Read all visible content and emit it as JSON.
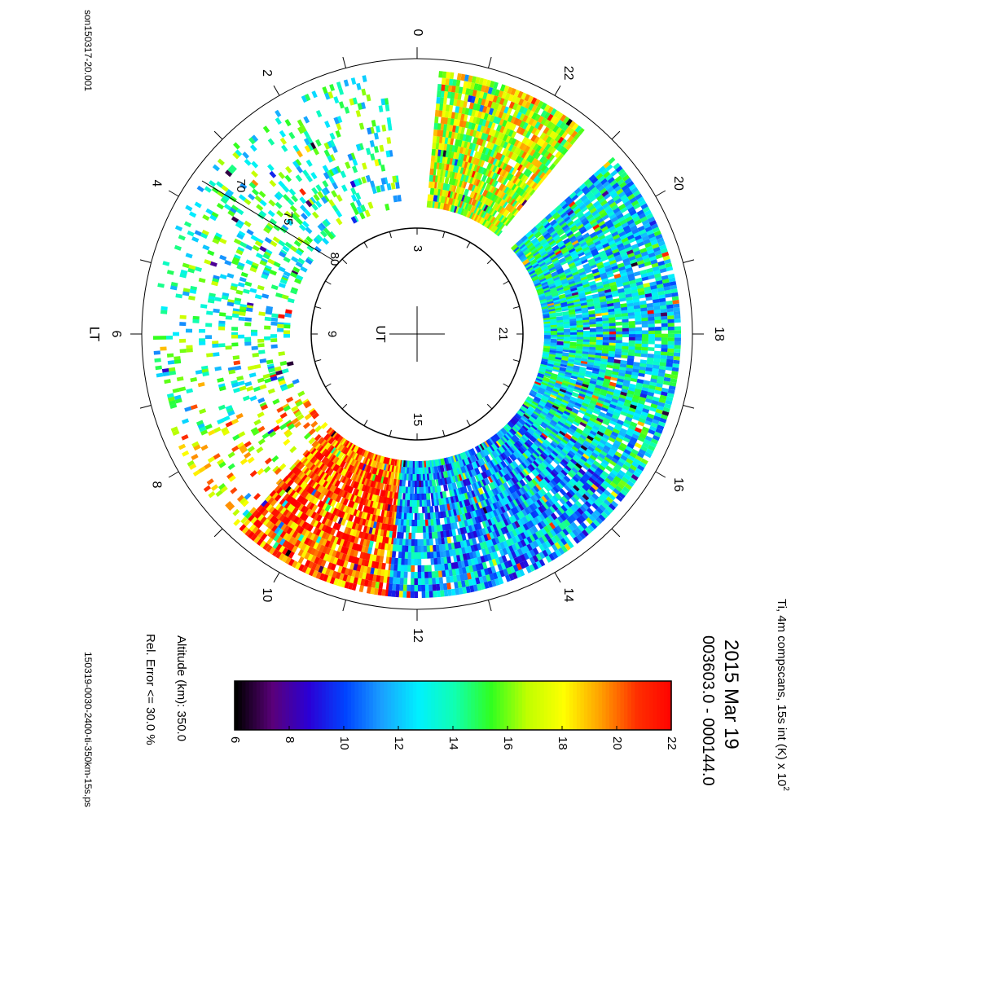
{
  "header": {
    "filename_top": "son150317-20.001",
    "filename_bottom": "150319-0030-2400-ti-350km-15s.ps"
  },
  "title": {
    "date": "2015 Mar 19",
    "time_range": "003603.0 - 000144.0"
  },
  "info": {
    "line1_prefix": "Ti, 4m compscans, 15s int (K) x 10",
    "line1_exponent": "2",
    "line2": "Altitude (km): 350.0",
    "line3": "Rel. Error <= 30.0 %"
  },
  "colorbar": {
    "min": 6,
    "max": 22,
    "ticks": [
      "6",
      "8",
      "10",
      "12",
      "14",
      "16",
      "18",
      "20",
      "22"
    ],
    "colors": [
      "#000000",
      "#5a007a",
      "#2a00d6",
      "#0044ff",
      "#1aa0ff",
      "#00f0ff",
      "#10ffb0",
      "#30ff20",
      "#c0ff00",
      "#ffff00",
      "#ffa000",
      "#ff3000",
      "#ff0000"
    ]
  },
  "chart_data": {
    "type": "heatmap",
    "projection": "polar",
    "outer_ring_label": "LT",
    "inner_ring_label": "UT",
    "lt_tick_labels": [
      "0",
      "2",
      "4",
      "6",
      "8",
      "10",
      "12",
      "14",
      "16",
      "18",
      "20",
      "22"
    ],
    "ut_tick_labels": [
      "3",
      "9",
      "15",
      "21"
    ],
    "latitude_labels": [
      "70",
      "75",
      "80"
    ],
    "value_range": [
      6,
      22
    ],
    "units": "K x 10^2",
    "sectors": [
      {
        "lt_start": 7.6,
        "lt_end": 9.2,
        "typical": 18.0,
        "notes": "mixed, sparse"
      },
      {
        "lt_start": 9.2,
        "lt_end": 11.6,
        "typical": 20.5,
        "notes": "red/yellow enhancement"
      },
      {
        "lt_start": 11.6,
        "lt_end": 15.5,
        "typical": 11.5,
        "notes": "blue band"
      },
      {
        "lt_start": 15.5,
        "lt_end": 20.8,
        "typical": 13.0,
        "notes": "cyan/blue mix"
      },
      {
        "lt_start": 21.4,
        "lt_end": 23.7,
        "typical": 17.0,
        "notes": "green/red spot"
      },
      {
        "lt_start": 0.5,
        "lt_end": 7.6,
        "typical": 14.0,
        "notes": "sparse scattered"
      }
    ]
  }
}
